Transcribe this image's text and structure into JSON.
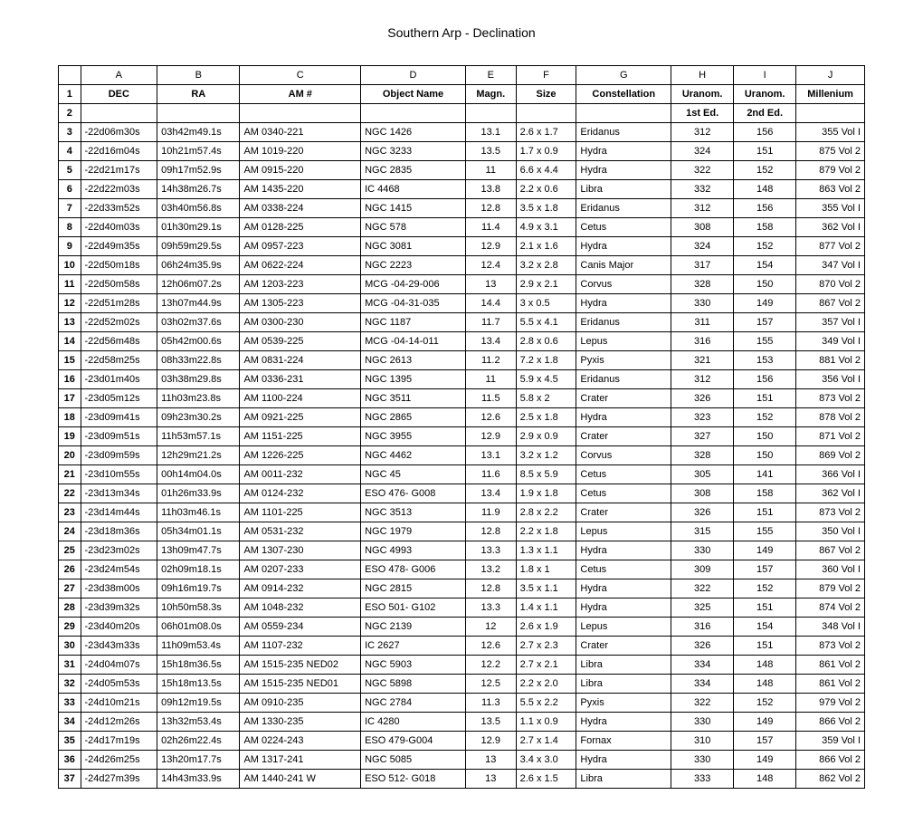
{
  "title": "Southern Arp - Declination",
  "letters": [
    "A",
    "B",
    "C",
    "D",
    "E",
    "F",
    "G",
    "H",
    "I",
    "J"
  ],
  "headers": [
    "DEC",
    "RA",
    "AM #",
    "Object Name",
    "Magn.",
    "Size",
    "Constellation",
    "Uranom.",
    "Uranom.",
    "Millenium"
  ],
  "subheaders": [
    "",
    "",
    "",
    "",
    "",
    "",
    "",
    "1st Ed.",
    "2nd Ed.",
    ""
  ],
  "rows": [
    [
      "-22d06m30s",
      "03h42m49.1s",
      "AM 0340-221",
      "NGC 1426",
      "13.1",
      "2.6 x 1.7",
      "Eridanus",
      "312",
      "156",
      "355 Vol I"
    ],
    [
      "-22d16m04s",
      "10h21m57.4s",
      "AM 1019-220",
      "NGC 3233",
      "13.5",
      "1.7 x 0.9",
      "Hydra",
      "324",
      "151",
      "875 Vol 2"
    ],
    [
      "-22d21m17s",
      "09h17m52.9s",
      "AM 0915-220",
      "NGC 2835",
      "11",
      "6.6 x 4.4",
      "Hydra",
      "322",
      "152",
      "879 Vol 2"
    ],
    [
      "-22d22m03s",
      "14h38m26.7s",
      "AM 1435-220",
      "IC 4468",
      "13.8",
      "2.2 x 0.6",
      "Libra",
      "332",
      "148",
      "863 Vol 2"
    ],
    [
      "-22d33m52s",
      "03h40m56.8s",
      "AM 0338-224",
      "NGC 1415",
      "12.8",
      "3.5 x 1.8",
      "Eridanus",
      "312",
      "156",
      "355 Vol I"
    ],
    [
      "-22d40m03s",
      "01h30m29.1s",
      "AM 0128-225",
      "NGC 578",
      "11.4",
      "4.9 x 3.1",
      "Cetus",
      "308",
      "158",
      "362 Vol I"
    ],
    [
      "-22d49m35s",
      "09h59m29.5s",
      "AM 0957-223",
      "NGC 3081",
      "12.9",
      "2.1 x 1.6",
      "Hydra",
      "324",
      "152",
      "877 Vol 2"
    ],
    [
      "-22d50m18s",
      "06h24m35.9s",
      "AM 0622-224",
      "NGC 2223",
      "12.4",
      "3.2 x 2.8",
      "Canis Major",
      "317",
      "154",
      "347 Vol I"
    ],
    [
      "-22d50m58s",
      "12h06m07.2s",
      "AM 1203-223",
      "MCG -04-29-006",
      "13",
      "2.9 x 2.1",
      "Corvus",
      "328",
      "150",
      "870 Vol 2"
    ],
    [
      "-22d51m28s",
      "13h07m44.9s",
      "AM 1305-223",
      "MCG -04-31-035",
      "14.4",
      "3 x 0.5",
      "Hydra",
      "330",
      "149",
      "867 Vol 2"
    ],
    [
      "-22d52m02s",
      "03h02m37.6s",
      "AM 0300-230",
      "NGC 1187",
      "11.7",
      "5.5 x 4.1",
      "Eridanus",
      "311",
      "157",
      "357 Vol I"
    ],
    [
      "-22d56m48s",
      "05h42m00.6s",
      "AM 0539-225",
      "MCG -04-14-011",
      "13.4",
      "2.8 x 0.6",
      "Lepus",
      "316",
      "155",
      "349 Vol I"
    ],
    [
      "-22d58m25s",
      "08h33m22.8s",
      "AM 0831-224",
      "NGC 2613",
      "11.2",
      "7.2 x 1.8",
      "Pyxis",
      "321",
      "153",
      "881 Vol 2"
    ],
    [
      "-23d01m40s",
      "03h38m29.8s",
      "AM 0336-231",
      "NGC 1395",
      "11",
      "5.9 x 4.5",
      "Eridanus",
      "312",
      "156",
      "356 Vol I"
    ],
    [
      "-23d05m12s",
      "11h03m23.8s",
      "AM 1100-224",
      "NGC 3511",
      "11.5",
      "5.8 x 2",
      "Crater",
      "326",
      "151",
      "873 Vol 2"
    ],
    [
      "-23d09m41s",
      "09h23m30.2s",
      "AM 0921-225",
      "NGC 2865",
      "12.6",
      "2.5 x 1.8",
      "Hydra",
      "323",
      "152",
      "878 Vol 2"
    ],
    [
      "-23d09m51s",
      "11h53m57.1s",
      "AM 1151-225",
      "NGC 3955",
      "12.9",
      "2.9 x 0.9",
      "Crater",
      "327",
      "150",
      "871 Vol 2"
    ],
    [
      "-23d09m59s",
      "12h29m21.2s",
      "AM 1226-225",
      "NGC 4462",
      "13.1",
      "3.2 x 1.2",
      "Corvus",
      "328",
      "150",
      "869 Vol 2"
    ],
    [
      "-23d10m55s",
      "00h14m04.0s",
      "AM 0011-232",
      "NGC 45",
      "11.6",
      "8.5 x 5.9",
      "Cetus",
      "305",
      "141",
      "366 Vol I"
    ],
    [
      "-23d13m34s",
      "01h26m33.9s",
      "AM 0124-232",
      "ESO 476- G008",
      "13.4",
      "1.9 x 1.8",
      "Cetus",
      "308",
      "158",
      "362 Vol I"
    ],
    [
      "-23d14m44s",
      "11h03m46.1s",
      "AM 1101-225",
      "NGC 3513",
      "11.9",
      "2.8 x 2.2",
      "Crater",
      "326",
      "151",
      "873 Vol 2"
    ],
    [
      "-23d18m36s",
      "05h34m01.1s",
      "AM 0531-232",
      "NGC 1979",
      "12.8",
      "2.2 x 1.8",
      "Lepus",
      "315",
      "155",
      "350 Vol I"
    ],
    [
      "-23d23m02s",
      "13h09m47.7s",
      "AM 1307-230",
      "NGC 4993",
      "13.3",
      "1.3 x 1.1",
      "Hydra",
      "330",
      "149",
      "867 Vol 2"
    ],
    [
      "-23d24m54s",
      "02h09m18.1s",
      "AM 0207-233",
      "ESO 478- G006",
      "13.2",
      "1.8 x 1",
      "Cetus",
      "309",
      "157",
      "360 Vol I"
    ],
    [
      "-23d38m00s",
      "09h16m19.7s",
      "AM 0914-232",
      "NGC 2815",
      "12.8",
      "3.5 x 1.1",
      "Hydra",
      "322",
      "152",
      "879 Vol 2"
    ],
    [
      "-23d39m32s",
      "10h50m58.3s",
      "AM 1048-232",
      "ESO 501- G102",
      "13.3",
      "1.4 x 1.1",
      "Hydra",
      "325",
      "151",
      "874 Vol 2"
    ],
    [
      "-23d40m20s",
      "06h01m08.0s",
      "AM 0559-234",
      "NGC 2139",
      "12",
      "2.6 x 1.9",
      "Lepus",
      "316",
      "154",
      "348 Vol I"
    ],
    [
      "-23d43m33s",
      "11h09m53.4s",
      "AM 1107-232",
      "IC 2627",
      "12.6",
      "2.7 x 2.3",
      "Crater",
      "326",
      "151",
      "873 Vol 2"
    ],
    [
      "-24d04m07s",
      "15h18m36.5s",
      "AM 1515-235 NED02",
      "NGC 5903",
      "12.2",
      "2.7 x 2.1",
      "Libra",
      "334",
      "148",
      "861 Vol 2"
    ],
    [
      "-24d05m53s",
      "15h18m13.5s",
      "AM 1515-235 NED01",
      "NGC 5898",
      "12.5",
      "2.2 x 2.0",
      "Libra",
      "334",
      "148",
      "861 Vol 2"
    ],
    [
      "-24d10m21s",
      "09h12m19.5s",
      "AM 0910-235",
      "NGC 2784",
      "11.3",
      "5.5 x 2.2",
      "Pyxis",
      "322",
      "152",
      "979 Vol 2"
    ],
    [
      "-24d12m26s",
      "13h32m53.4s",
      "AM 1330-235",
      "IC 4280",
      "13.5",
      "1.1 x 0.9",
      "Hydra",
      "330",
      "149",
      "866 Vol 2"
    ],
    [
      "-24d17m19s",
      "02h26m22.4s",
      "AM 0224-243",
      "ESO 479-G004",
      "12.9",
      "2.7 x 1.4",
      "Fornax",
      "310",
      "157",
      "359 Vol I"
    ],
    [
      "-24d26m25s",
      "13h20m17.7s",
      "AM 1317-241",
      "NGC 5085",
      "13",
      "3.4 x 3.0",
      "Hydra",
      "330",
      "149",
      "866 Vol 2"
    ],
    [
      "-24d27m39s",
      "14h43m33.9s",
      "AM 1440-241 W",
      "ESO 512- G018",
      "13",
      "2.6 x 1.5",
      "Libra",
      "333",
      "148",
      "862 Vol 2"
    ]
  ],
  "styling": {
    "font_family": "Arial",
    "title_fontsize": 14,
    "cell_fontsize": 11,
    "border_color": "#000000",
    "background_color": "#ffffff",
    "centered_columns": [
      4,
      7,
      8
    ],
    "right_columns": [
      9
    ]
  }
}
